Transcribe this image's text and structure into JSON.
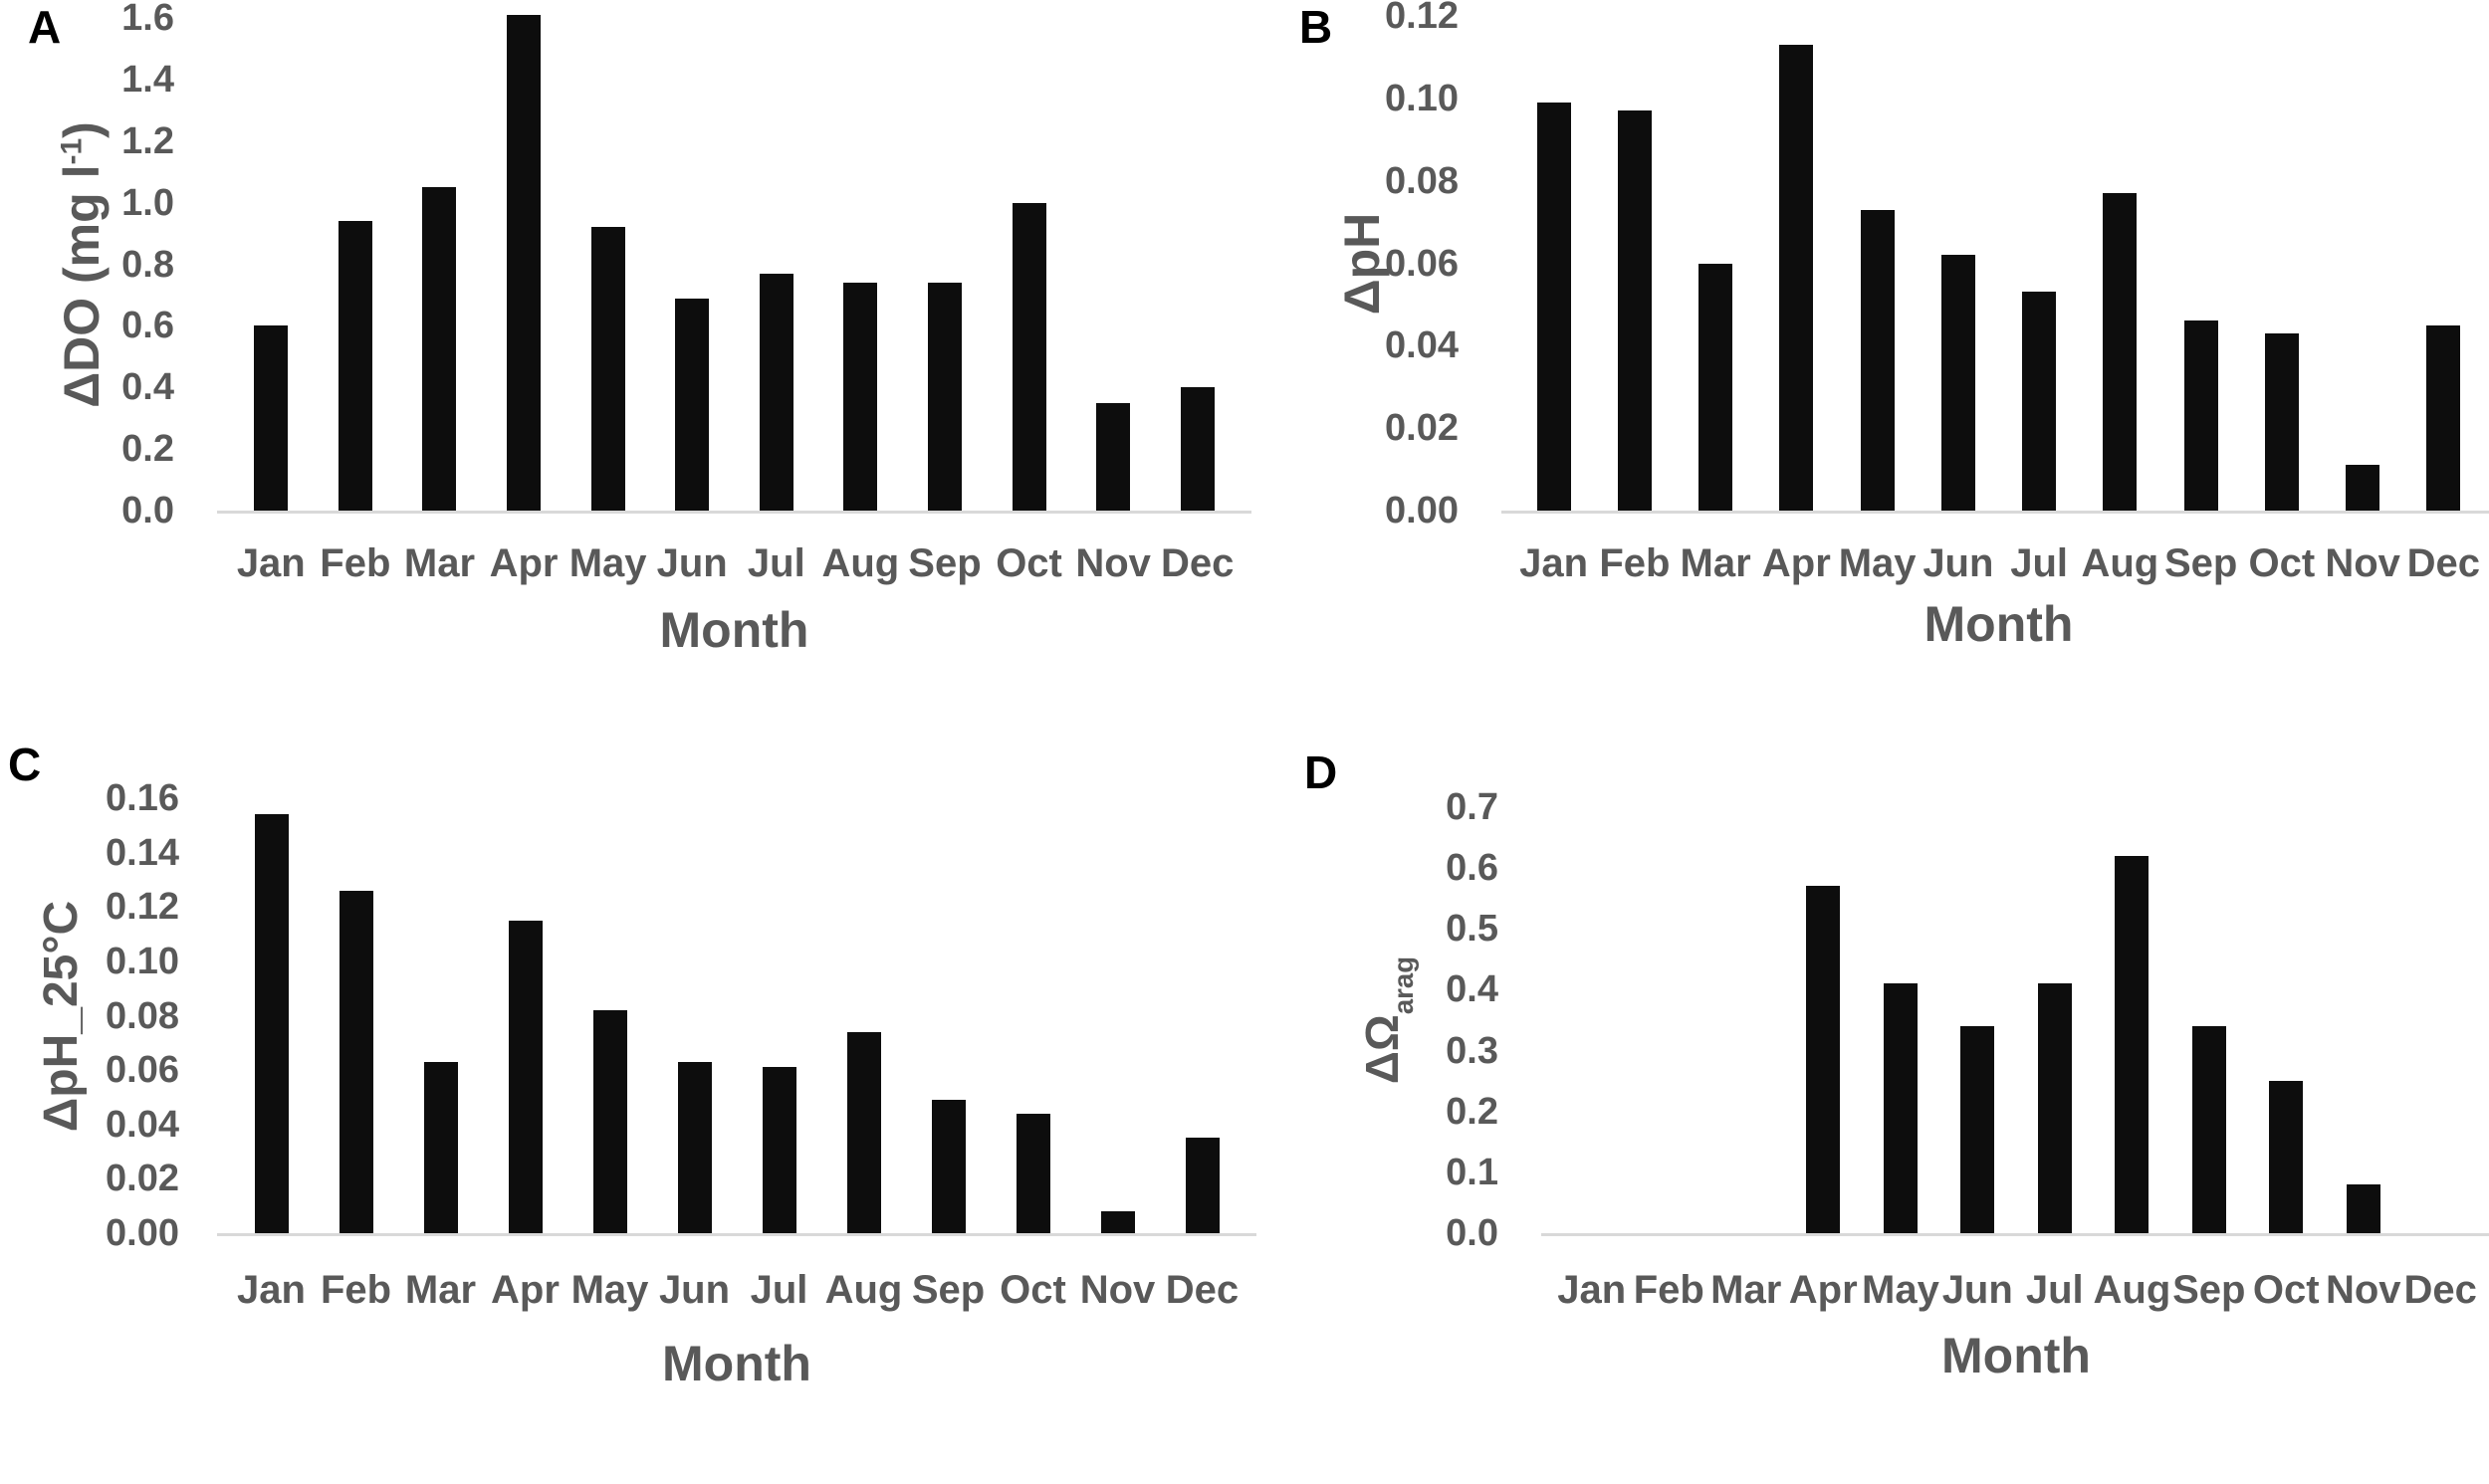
{
  "colors": {
    "bar": "#0d0d0d",
    "axis_text": "#595959",
    "axis_line": "#d9d9d9",
    "panel_letter": "#000000",
    "background": "#ffffff"
  },
  "chart_data": [
    {
      "type": "bar",
      "panel_label": "A",
      "xlabel": "Month",
      "ylabel": "ΔDO (mg l⁻¹)",
      "ylabel_segments": [
        {
          "t": "ΔDO (mg l"
        },
        {
          "t": "-1",
          "style": "sup"
        },
        {
          "t": ")"
        }
      ],
      "categories": [
        "Jan",
        "Feb",
        "Mar",
        "Apr",
        "May",
        "Jun",
        "Jul",
        "Aug",
        "Sep",
        "Oct",
        "Nov",
        "Dec"
      ],
      "values": [
        0.6,
        0.94,
        1.05,
        1.61,
        0.92,
        0.69,
        0.77,
        0.74,
        0.74,
        1.0,
        0.35,
        0.4
      ],
      "ylim": [
        0,
        1.6
      ],
      "yticks": [
        "0.0",
        "0.2",
        "0.4",
        "0.6",
        "0.8",
        "1.0",
        "1.2",
        "1.4",
        "1.6"
      ],
      "grid": false,
      "legend": null,
      "bar_color": "#0d0d0d"
    },
    {
      "type": "bar",
      "panel_label": "B",
      "xlabel": "Month",
      "ylabel": "ΔpH",
      "ylabel_segments": [
        {
          "t": "ΔpH"
        }
      ],
      "categories": [
        "Jan",
        "Feb",
        "Mar",
        "Apr",
        "May",
        "Jun",
        "Jul",
        "Aug",
        "Sep",
        "Oct",
        "Nov",
        "Dec"
      ],
      "values": [
        0.099,
        0.097,
        0.06,
        0.113,
        0.073,
        0.062,
        0.053,
        0.077,
        0.046,
        0.043,
        0.011,
        0.045
      ],
      "ylim": [
        0,
        0.12
      ],
      "yticks": [
        "0.00",
        "0.02",
        "0.04",
        "0.06",
        "0.08",
        "0.10",
        "0.12"
      ],
      "grid": false,
      "legend": null,
      "bar_color": "#0d0d0d"
    },
    {
      "type": "bar",
      "panel_label": "C",
      "xlabel": "Month",
      "ylabel": "ΔpH_25°C",
      "ylabel_segments": [
        {
          "t": "ΔpH_25°C"
        }
      ],
      "categories": [
        "Jan",
        "Feb",
        "Mar",
        "Apr",
        "May",
        "Jun",
        "Jul",
        "Aug",
        "Sep",
        "Oct",
        "Nov",
        "Dec"
      ],
      "values": [
        0.154,
        0.126,
        0.063,
        0.115,
        0.082,
        0.063,
        0.061,
        0.074,
        0.049,
        0.044,
        0.008,
        0.035
      ],
      "ylim": [
        0,
        0.16
      ],
      "yticks": [
        "0.00",
        "0.02",
        "0.04",
        "0.06",
        "0.08",
        "0.10",
        "0.12",
        "0.14",
        "0.16"
      ],
      "grid": false,
      "legend": null,
      "bar_color": "#0d0d0d"
    },
    {
      "type": "bar",
      "panel_label": "D",
      "xlabel": "Month",
      "ylabel": "ΔΩarag",
      "ylabel_segments": [
        {
          "t": "ΔΩ"
        },
        {
          "t": "arag",
          "style": "sub"
        }
      ],
      "categories": [
        "Jan",
        "Feb",
        "Mar",
        "Apr",
        "May",
        "Jun",
        "Jul",
        "Aug",
        "Sep",
        "Oct",
        "Nov",
        "Dec"
      ],
      "values": [
        0,
        0,
        0,
        0.57,
        0.41,
        0.34,
        0.41,
        0.62,
        0.34,
        0.25,
        0.08,
        0
      ],
      "ylim": [
        0,
        0.7
      ],
      "yticks": [
        "0.0",
        "0.1",
        "0.2",
        "0.3",
        "0.4",
        "0.5",
        "0.6",
        "0.7"
      ],
      "grid": false,
      "legend": null,
      "bar_color": "#0d0d0d"
    }
  ]
}
